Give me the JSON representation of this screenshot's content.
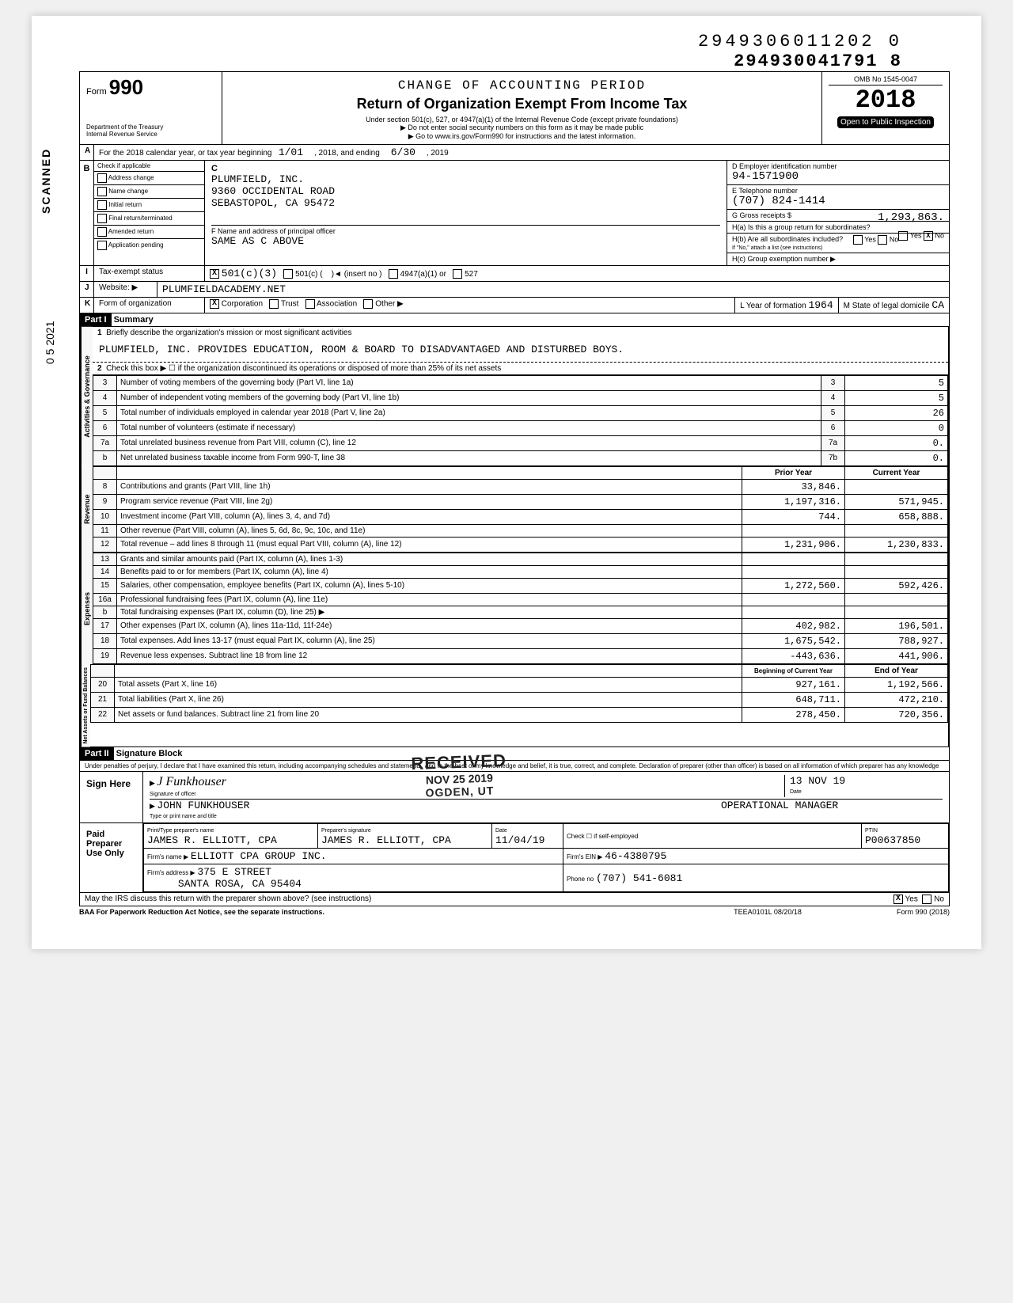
{
  "top": {
    "barcode1": "2949306011202  0",
    "barcode2": "294930041791 8",
    "scanned_label": "SCANNED",
    "date_stamp_side": "0 5 2021"
  },
  "header": {
    "form_label": "Form",
    "form_no": "990",
    "dept": "Department of the Treasury\nInternal Revenue Service",
    "accounting": "CHANGE OF ACCOUNTING PERIOD",
    "title": "Return of Organization Exempt From Income Tax",
    "sub1": "Under section 501(c), 527, or 4947(a)(1) of the Internal Revenue Code (except private foundations)",
    "sub2": "▶ Do not enter social security numbers on this form as it may be made public",
    "sub3": "▶ Go to www.irs.gov/Form990 for instructions and the latest information.",
    "omb": "OMB No 1545-0047",
    "year": "2018",
    "open": "Open to Public Inspection"
  },
  "lineA": {
    "text": "For the 2018 calendar year, or tax year beginning",
    "begin": "1/01",
    "mid": ", 2018, and ending",
    "end": "6/30",
    "year2": ", 2019"
  },
  "sectionB": {
    "check_label": "Check if applicable",
    "c_label": "C",
    "items": [
      "Address change",
      "Name change",
      "Initial return",
      "Final return/terminated",
      "Amended return",
      "Application pending"
    ],
    "org_name": "PLUMFIELD, INC.",
    "org_addr1": "9360 OCCIDENTAL ROAD",
    "org_addr2": "SEBASTOPOL, CA 95472",
    "f_label": "F Name and address of principal officer",
    "f_value": "SAME AS C ABOVE",
    "d_label": "D Employer identification number",
    "d_value": "94-1571900",
    "e_label": "E Telephone number",
    "e_value": "(707) 824-1414",
    "g_label": "G Gross receipts $",
    "g_value": "1,293,863.",
    "h_a": "H(a) Is this a group return for subordinates?",
    "h_b": "H(b) Are all subordinates included?",
    "h_note": "If \"No,\" attach a list (see instructions)",
    "h_c": "H(c) Group exemption number ▶",
    "yes": "Yes",
    "no": "No"
  },
  "lineI": {
    "label": "Tax-exempt status",
    "opt1": "501(c)(3)",
    "opt2": "501(c) (",
    "opt2b": ")◄ (insert no )",
    "opt3": "4947(a)(1) or",
    "opt4": "527"
  },
  "lineJ": {
    "label": "Website: ▶",
    "value": "PLUMFIELDACADEMY.NET"
  },
  "lineK": {
    "label": "Form of organization",
    "corp": "Corporation",
    "trust": "Trust",
    "assoc": "Association",
    "other": "Other ▶",
    "l_label": "L Year of formation",
    "l_value": "1964",
    "m_label": "M State of legal domicile",
    "m_value": "CA"
  },
  "partI": {
    "title_part": "Part I",
    "title_rest": "Summary",
    "line1_label": "Briefly describe the organization's mission or most significant activities",
    "mission": "PLUMFIELD, INC. PROVIDES EDUCATION, ROOM & BOARD TO DISADVANTAGED AND DISTURBED BOYS.",
    "line2": "Check this box ▶ ☐ if the organization discontinued its operations or disposed of more than 25% of its net assets",
    "governance_label": "Activities & Governance",
    "lines_gov": [
      {
        "n": "3",
        "d": "Number of voting members of the governing body (Part VI, line 1a)",
        "box": "3",
        "v": "5"
      },
      {
        "n": "4",
        "d": "Number of independent voting members of the governing body (Part VI, line 1b)",
        "box": "4",
        "v": "5"
      },
      {
        "n": "5",
        "d": "Total number of individuals employed in calendar year 2018 (Part V, line 2a)",
        "box": "5",
        "v": "26"
      },
      {
        "n": "6",
        "d": "Total number of volunteers (estimate if necessary)",
        "box": "6",
        "v": "0"
      },
      {
        "n": "7a",
        "d": "Total unrelated business revenue from Part VIII, column (C), line 12",
        "box": "7a",
        "v": "0."
      },
      {
        "n": "b",
        "d": "Net unrelated business taxable income from Form 990-T, line 38",
        "box": "7b",
        "v": "0."
      }
    ],
    "prior_year": "Prior Year",
    "current_year": "Current Year",
    "revenue_label": "Revenue",
    "revenue": [
      {
        "n": "8",
        "d": "Contributions and grants (Part VIII, line 1h)",
        "py": "33,846.",
        "cy": ""
      },
      {
        "n": "9",
        "d": "Program service revenue (Part VIII, line 2g)",
        "py": "1,197,316.",
        "cy": "571,945."
      },
      {
        "n": "10",
        "d": "Investment income (Part VIII, column (A), lines 3, 4, and 7d)",
        "py": "744.",
        "cy": "658,888."
      },
      {
        "n": "11",
        "d": "Other revenue (Part VIII, column (A), lines 5, 6d, 8c, 9c, 10c, and 11e)",
        "py": "",
        "cy": ""
      },
      {
        "n": "12",
        "d": "Total revenue – add lines 8 through 11 (must equal Part VIII, column (A), line 12)",
        "py": "1,231,906.",
        "cy": "1,230,833."
      }
    ],
    "expenses_label": "Expenses",
    "expenses": [
      {
        "n": "13",
        "d": "Grants and similar amounts paid (Part IX, column (A), lines 1-3)",
        "py": "",
        "cy": ""
      },
      {
        "n": "14",
        "d": "Benefits paid to or for members (Part IX, column (A), line 4)",
        "py": "",
        "cy": ""
      },
      {
        "n": "15",
        "d": "Salaries, other compensation, employee benefits (Part IX, column (A), lines 5-10)",
        "py": "1,272,560.",
        "cy": "592,426."
      },
      {
        "n": "16a",
        "d": "Professional fundraising fees (Part IX, column (A), line 11e)",
        "py": "",
        "cy": ""
      },
      {
        "n": "b",
        "d": "Total fundraising expenses (Part IX, column (D), line 25) ▶",
        "py": "",
        "cy": ""
      },
      {
        "n": "17",
        "d": "Other expenses (Part IX, column (A), lines 11a-11d, 11f-24e)",
        "py": "402,982.",
        "cy": "196,501."
      },
      {
        "n": "18",
        "d": "Total expenses. Add lines 13-17 (must equal Part IX, column (A), line 25)",
        "py": "1,675,542.",
        "cy": "788,927."
      },
      {
        "n": "19",
        "d": "Revenue less expenses. Subtract line 18 from line 12",
        "py": "-443,636.",
        "cy": "441,906."
      }
    ],
    "net_label": "Net Assets or Fund Balances",
    "begin_year": "Beginning of Current Year",
    "end_year": "End of Year",
    "net": [
      {
        "n": "20",
        "d": "Total assets (Part X, line 16)",
        "py": "927,161.",
        "cy": "1,192,566."
      },
      {
        "n": "21",
        "d": "Total liabilities (Part X, line 26)",
        "py": "648,711.",
        "cy": "472,210."
      },
      {
        "n": "22",
        "d": "Net assets or fund balances. Subtract line 21 from line 20",
        "py": "278,450.",
        "cy": "720,356."
      }
    ]
  },
  "partII": {
    "title_part": "Part II",
    "title_rest": "Signature Block",
    "perjury": "Under penalties of perjury, I declare that I have examined this return, including accompanying schedules and statements, and to the best of my knowledge and belief, it is true, correct, and complete. Declaration of preparer (other than officer) is based on all information of which preparer has any knowledge",
    "sign_here": "Sign Here",
    "sig_label": "Signature of officer",
    "date_label": "Date",
    "date_value": "13 NOV 19",
    "officer_name": "JOHN FUNKHOUSER",
    "officer_title": "OPERATIONAL MANAGER",
    "name_title_label": "Type or print name and title",
    "paid_label": "Paid Preparer Use Only",
    "prep_name_label": "Print/Type preparer's name",
    "prep_name": "JAMES R. ELLIOTT, CPA",
    "prep_sig_label": "Preparer's signature",
    "prep_sig": "JAMES R. ELLIOTT, CPA",
    "prep_date": "11/04/19",
    "check_label": "Check ☐ if self-employed",
    "ptin_label": "PTIN",
    "ptin": "P00637850",
    "firm_name_label": "Firm's name ▶",
    "firm_name": "ELLIOTT CPA GROUP INC.",
    "firm_addr_label": "Firm's address ▶",
    "firm_addr1": "375 E STREET",
    "firm_addr2": "SANTA ROSA, CA 95404",
    "firm_ein_label": "Firm's EIN ▶",
    "firm_ein": "46-4380795",
    "phone_label": "Phone no",
    "phone": "(707) 541-6081",
    "discuss": "May the IRS discuss this return with the preparer shown above? (see instructions)",
    "yes": "Yes",
    "no": "No",
    "baa": "BAA For Paperwork Reduction Act Notice, see the separate instructions.",
    "teea": "TEEA0101L 08/20/18",
    "form_foot": "Form 990 (2018)"
  },
  "stamp": {
    "received": "RECEIVED",
    "date": "NOV 25 2019",
    "where": "OGDEN, UT"
  }
}
